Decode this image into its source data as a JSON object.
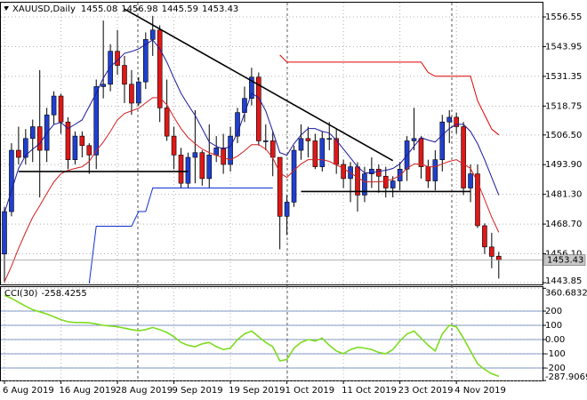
{
  "chart_data": [
    {
      "type": "candlestick",
      "title": "XAUUSD,Daily",
      "categories": [
        "6 Aug 2019",
        null,
        null,
        null,
        null,
        null,
        null,
        null,
        "16 Aug 2019",
        null,
        null,
        null,
        null,
        null,
        null,
        null,
        "28 Aug 2019",
        null,
        null,
        null,
        null,
        null,
        null,
        null,
        "9 Sep 2019",
        null,
        null,
        null,
        null,
        null,
        null,
        null,
        "19 Sep 2019",
        null,
        null,
        null,
        null,
        null,
        null,
        null,
        "1 Oct 2019",
        null,
        null,
        null,
        null,
        null,
        null,
        null,
        "11 Oct 2019",
        null,
        null,
        null,
        null,
        null,
        null,
        null,
        "23 Oct 2019",
        null,
        null,
        null,
        null,
        null,
        null,
        null,
        "4 Nov 2019",
        null,
        null,
        null,
        null,
        null,
        null
      ],
      "open": [
        1456,
        1474,
        1500,
        1497,
        1505,
        1510,
        1500,
        1515,
        1523,
        1512,
        1496,
        1506,
        1502,
        1498,
        1527,
        1528,
        1542,
        1536,
        1528,
        1520,
        1529,
        1547,
        1551,
        1518,
        1506,
        1498,
        1486,
        1497,
        1499,
        1488,
        1498,
        1501,
        1494,
        1506,
        1516,
        1522,
        1531,
        1504,
        1504,
        1497,
        1472,
        1478,
        1500,
        1505,
        1504,
        1493,
        1505,
        1505,
        1494,
        1488,
        1493,
        1481,
        1490,
        1492,
        1489,
        1484,
        1487,
        1492,
        1504,
        1505,
        1493,
        1487,
        1496,
        1512,
        1514,
        1510,
        1484,
        1490,
        1468,
        1459,
        1455.08
      ],
      "high": [
        1476,
        1503,
        1510,
        1509,
        1513,
        1534,
        1518,
        1525,
        1524,
        1514,
        1508,
        1508,
        1503,
        1530,
        1555,
        1545,
        1551,
        1540,
        1534,
        1531,
        1550,
        1557,
        1553,
        1530,
        1510,
        1501,
        1499,
        1517,
        1500,
        1511,
        1506,
        1507,
        1510,
        1518,
        1527,
        1535,
        1533,
        1511,
        1508,
        1497,
        1481,
        1502,
        1511,
        1510,
        1507,
        1508,
        1512,
        1509,
        1496,
        1495,
        1495,
        1493,
        1497,
        1494,
        1493,
        1489,
        1495,
        1506,
        1518,
        1506,
        1496,
        1500,
        1515,
        1517,
        1516,
        1512,
        1494,
        1494,
        1469,
        1465,
        1456.98
      ],
      "low": [
        1444,
        1472,
        1494,
        1494,
        1495,
        1480,
        1495,
        1511,
        1507,
        1492,
        1494,
        1497,
        1490,
        1492,
        1522,
        1525,
        1532,
        1520,
        1515,
        1519,
        1526,
        1540,
        1512,
        1504,
        1492,
        1484,
        1484,
        1486,
        1485,
        1484,
        1495,
        1490,
        1491,
        1503,
        1512,
        1519,
        1502,
        1500,
        1489,
        1458,
        1464,
        1476,
        1496,
        1497,
        1492,
        1491,
        1500,
        1490,
        1484,
        1478,
        1474,
        1478,
        1484,
        1482,
        1480,
        1480,
        1483,
        1487,
        1500,
        1488,
        1484,
        1483,
        1491,
        1503,
        1507,
        1481,
        1478,
        1467,
        1456,
        1450,
        1445.59
      ],
      "close": [
        1474,
        1500,
        1497,
        1505,
        1510,
        1500,
        1515,
        1523,
        1512,
        1496,
        1506,
        1502,
        1498,
        1527,
        1528,
        1542,
        1536,
        1528,
        1520,
        1529,
        1547,
        1551,
        1518,
        1506,
        1498,
        1486,
        1497,
        1499,
        1488,
        1498,
        1501,
        1494,
        1506,
        1516,
        1522,
        1531,
        1504,
        1504,
        1497,
        1472,
        1478,
        1500,
        1505,
        1504,
        1493,
        1505,
        1505,
        1494,
        1488,
        1493,
        1481,
        1490,
        1492,
        1489,
        1484,
        1487,
        1492,
        1504,
        1505,
        1493,
        1487,
        1496,
        1512,
        1514,
        1510,
        1484,
        1490,
        1468,
        1459,
        1455,
        1453.43
      ],
      "up_color": "#2040d0",
      "down_color": "#e01818",
      "series": [
        {
          "color": "#1a1a9a",
          "values": [
            1473.5,
            1482.9,
            1492.3,
            1497.9,
            1500.5,
            1502.8,
            1507.3,
            1511.0,
            1511.8,
            1509.2,
            1511.0,
            1512.9,
            1518.6,
            1524.2,
            1530.6,
            1535.5,
            1538.1,
            1541.1,
            1541.9,
            1543.0,
            1544.9,
            1546.8,
            1543.0,
            1537.4,
            1530.6,
            1524.2,
            1519.3,
            1514.8,
            1509.2,
            1503.5,
            1501.7,
            1500.5,
            1501.7,
            1507.3,
            1515.6,
            1524.2,
            1522.3,
            1516.7,
            1508.0,
            1499.0,
            1497.9,
            1502.8,
            1506.5,
            1509.2,
            1509.2,
            1508.0,
            1507.3,
            1504.3,
            1500.5,
            1496.8,
            1493.0,
            1490.4,
            1490.4,
            1491.1,
            1491.5,
            1492.3,
            1494.2,
            1497.9,
            1501.7,
            1505.4,
            1504.3,
            1503.5,
            1506.5,
            1509.2,
            1511.0,
            1511.0,
            1508.0,
            1502.8,
            1496.0,
            1488.5,
            1481.0
          ]
        },
        {
          "color": "#d42020",
          "values": [
            1444.2,
            1450.9,
            1458.4,
            1465.2,
            1471.6,
            1476.5,
            1481.7,
            1486.6,
            1490.0,
            1491.5,
            1492.3,
            1493.0,
            1495.3,
            1499.8,
            1503.5,
            1508.0,
            1512.9,
            1515.6,
            1516.7,
            1517.8,
            1520.1,
            1522.3,
            1522.3,
            1519.3,
            1514.0,
            1509.2,
            1505.4,
            1502.8,
            1500.5,
            1499.0,
            1497.9,
            1496.8,
            1496.0,
            1497.5,
            1499.8,
            1502.4,
            1502.4,
            1500.5,
            1496.8,
            1490.4,
            1488.5,
            1491.5,
            1494.2,
            1496.0,
            1496.0,
            1496.0,
            1495.3,
            1493.8,
            1492.3,
            1490.4,
            1488.5,
            1486.6,
            1486.6,
            1486.6,
            1487.0,
            1487.8,
            1489.3,
            1492.3,
            1494.2,
            1494.2,
            1493.0,
            1493.0,
            1494.2,
            1495.3,
            1496.0,
            1494.2,
            1492.3,
            1486.6,
            1479.1,
            1471.6,
            1465.2
          ]
        },
        {
          "color": "#e00000",
          "values": [
            null,
            null,
            null,
            null,
            null,
            null,
            null,
            null,
            null,
            null,
            null,
            null,
            null,
            null,
            null,
            null,
            null,
            null,
            null,
            null,
            null,
            null,
            null,
            null,
            null,
            null,
            null,
            null,
            null,
            null,
            null,
            null,
            null,
            null,
            null,
            null,
            null,
            null,
            null,
            1540.4,
            1537.4,
            1537.4,
            1537.4,
            1537.4,
            1537.4,
            1537.4,
            1537.4,
            1537.4,
            1537.4,
            1537.4,
            1537.4,
            1537.4,
            1537.4,
            1537.4,
            1537.4,
            1537.4,
            1537.4,
            1537.4,
            1537.4,
            1537.4,
            1533.0,
            1531.4,
            1531.4,
            1531.4,
            1531.4,
            1531.4,
            1531.4,
            1521,
            1515,
            1509,
            1506.5
          ]
        },
        {
          "color": "#1030d0",
          "values": [
            null,
            null,
            null,
            null,
            null,
            null,
            null,
            null,
            null,
            null,
            null,
            null,
            1443.5,
            1467.8,
            1467.8,
            1467.8,
            1467.8,
            1467.8,
            1467.8,
            1474.0,
            1474.0,
            1484.0,
            1484.0,
            1484.0,
            1484.0,
            1484.0,
            1484.0,
            1484.0,
            1484.0,
            1484.0,
            1484.0,
            1484.0,
            1484.0,
            1484.0,
            1484.0,
            1484.0,
            1484.0,
            1484.0,
            1484.0,
            null,
            null,
            null,
            null,
            null,
            null,
            null,
            null,
            null,
            null,
            null,
            null,
            null,
            null,
            null,
            null,
            null,
            null,
            null,
            null,
            null,
            null,
            null,
            null,
            null,
            null,
            null,
            null,
            null,
            null,
            null,
            null
          ]
        }
      ],
      "trendlines": [
        {
          "x": [
            17,
            55
          ],
          "y": [
            1559.9,
            1495.6
          ]
        },
        {
          "x": [
            2,
            26
          ],
          "y": [
            1491,
            1491
          ]
        },
        {
          "x": [
            42,
            66
          ],
          "y": [
            1482.5,
            1482.5
          ]
        }
      ],
      "ylim": [
        1443.1,
        1562.6
      ],
      "yticks": [
        1556.55,
        1543.95,
        1531.35,
        1518.75,
        {
          "value": 1506.5,
          "label": "1506.50"
        },
        {
          "value": 1493.9,
          "label": "1493.90"
        },
        {
          "value": 1481.3,
          "label": "1481.30"
        },
        {
          "value": 1468.7,
          "label": "1468.70"
        },
        {
          "value": 1456.1,
          "label": "1456.10"
        },
        1443.85
      ],
      "grid": true
    },
    {
      "type": "line",
      "title": "CCI(30)",
      "color": "#7ddc1f",
      "values": [
        312,
        290,
        262,
        235,
        210,
        195,
        180,
        160,
        140,
        125,
        120,
        120,
        118,
        110,
        100,
        95,
        90,
        80,
        70,
        62,
        70,
        85,
        70,
        50,
        20,
        -20,
        -40,
        -50,
        -30,
        -20,
        -50,
        -70,
        -60,
        0,
        40,
        60,
        20,
        -20,
        -50,
        -150,
        -140,
        -60,
        -20,
        0,
        -10,
        10,
        -40,
        -80,
        -100,
        -70,
        -55,
        -60,
        -70,
        -90,
        -100,
        -70,
        -10,
        40,
        60,
        10,
        -40,
        -80,
        40,
        100,
        90,
        10,
        -80,
        -170,
        -210,
        -240,
        -258.4255
      ],
      "ylim": [
        -287.9069,
        360.6832
      ],
      "yticks": [
        360.6832,
        200,
        100,
        {
          "value": 0,
          "label": "0.00"
        },
        -100,
        -200,
        -287.9069
      ],
      "level_color": "#5a7ab4",
      "grid": true
    }
  ]
}
